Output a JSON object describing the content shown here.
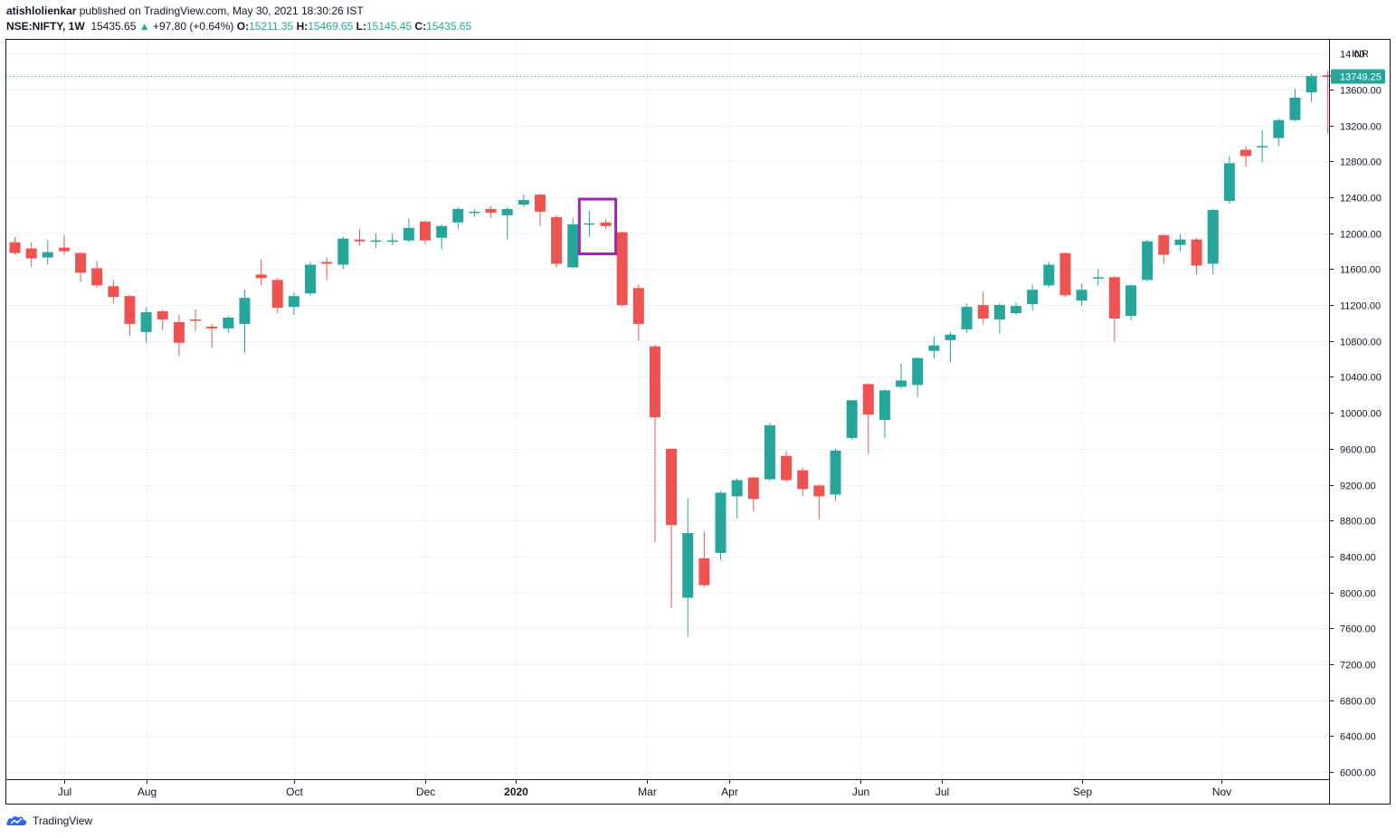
{
  "header": {
    "publisher": "atishlolienkar",
    "published_text": "published on TradingView.com, May 30, 2021 18:30:26 IST",
    "symbol": "NSE:NIFTY, 1W",
    "last_price": "15435.65",
    "change": "+97.80 (+0.64%)",
    "o_label": "O:",
    "o_value": "15211.35",
    "h_label": "H:",
    "h_value": "15469.65",
    "l_label": "L:",
    "l_value": "15145.45",
    "c_label": "C:",
    "c_value": "15435.65"
  },
  "footer": {
    "brand": "TradingView"
  },
  "colors": {
    "up": "#26a69a",
    "down": "#ef5350",
    "highlight": "#9c27b0",
    "grid": "#f0f3fa"
  },
  "chart_data": {
    "type": "candlestick",
    "currency": "INR",
    "last_price_label": "13749.25",
    "ylim": [
      5950,
      14300
    ],
    "y_ticks": [
      6000,
      6400,
      6800,
      7200,
      7600,
      8000,
      8400,
      8800,
      9200,
      9600,
      10000,
      10400,
      10800,
      11200,
      11600,
      12000,
      12400,
      12800,
      13200,
      13600
    ],
    "y_tick_top_label": "14 00",
    "x_ticks": [
      {
        "label": "Jul",
        "index": 3,
        "bold": false
      },
      {
        "label": "Aug",
        "index": 8,
        "bold": false
      },
      {
        "label": "Oct",
        "index": 17,
        "bold": false
      },
      {
        "label": "Dec",
        "index": 25,
        "bold": false
      },
      {
        "label": "2020",
        "index": 30.5,
        "bold": true
      },
      {
        "label": "Mar",
        "index": 38.5,
        "bold": false
      },
      {
        "label": "Apr",
        "index": 43.5,
        "bold": false
      },
      {
        "label": "Jun",
        "index": 51.5,
        "bold": false
      },
      {
        "label": "Jul",
        "index": 56.5,
        "bold": false
      },
      {
        "label": "Sep",
        "index": 65,
        "bold": false
      },
      {
        "label": "Nov",
        "index": 73.5,
        "bold": false
      }
    ],
    "highlight_box": {
      "from_index": 34.5,
      "to_index": 36.5,
      "low": 11770,
      "high": 12380
    },
    "candles": [
      [
        11900,
        11780,
        11960,
        11760
      ],
      [
        11830,
        11720,
        11900,
        11630
      ],
      [
        11730,
        11790,
        11920,
        11650
      ],
      [
        11840,
        11800,
        11980,
        11760
      ],
      [
        11780,
        11560,
        11790,
        11460
      ],
      [
        11610,
        11420,
        11690,
        11390
      ],
      [
        11410,
        11290,
        11480,
        11220
      ],
      [
        11300,
        10990,
        11310,
        10860
      ],
      [
        10900,
        11120,
        11180,
        10780
      ],
      [
        11130,
        11040,
        11150,
        10920
      ],
      [
        11010,
        10780,
        11090,
        10630
      ],
      [
        11040,
        11030,
        11150,
        10910
      ],
      [
        10960,
        10940,
        10990,
        10720
      ],
      [
        10940,
        11060,
        11080,
        10890
      ],
      [
        10990,
        11280,
        11370,
        10670
      ],
      [
        11540,
        11500,
        11710,
        11420
      ],
      [
        11480,
        11170,
        11500,
        11110
      ],
      [
        11180,
        11300,
        11340,
        11090
      ],
      [
        11330,
        11650,
        11680,
        11300
      ],
      [
        11680,
        11660,
        11730,
        11480
      ],
      [
        11650,
        11940,
        11960,
        11600
      ],
      [
        11930,
        11910,
        12040,
        11860
      ],
      [
        11910,
        11920,
        12000,
        11830
      ],
      [
        11910,
        11920,
        12000,
        11870
      ],
      [
        11920,
        12060,
        12160,
        11900
      ],
      [
        12130,
        11920,
        12140,
        11880
      ],
      [
        11950,
        12080,
        12100,
        11820
      ],
      [
        12120,
        12270,
        12290,
        12050
      ],
      [
        12230,
        12240,
        12270,
        12180
      ],
      [
        12270,
        12230,
        12300,
        12170
      ],
      [
        12200,
        12270,
        12290,
        11930
      ],
      [
        12320,
        12370,
        12430,
        12290
      ],
      [
        12430,
        12240,
        12440,
        12080
      ],
      [
        12180,
        11660,
        12200,
        11620
      ],
      [
        11620,
        12100,
        12160,
        11610
      ],
      [
        12100,
        12110,
        12250,
        11960
      ],
      [
        12120,
        12080,
        12160,
        12050
      ],
      [
        12010,
        11200,
        12020,
        11180
      ],
      [
        11390,
        10990,
        11430,
        10800
      ],
      [
        10740,
        9950,
        10760,
        8560
      ],
      [
        9600,
        8750,
        9600,
        7830
      ],
      [
        7940,
        8660,
        9050,
        7510
      ],
      [
        8380,
        8080,
        8680,
        8060
      ],
      [
        8440,
        9110,
        9130,
        8360
      ],
      [
        9070,
        9250,
        9270,
        8820
      ],
      [
        9280,
        9040,
        9280,
        8900
      ],
      [
        9260,
        9860,
        9890,
        9240
      ],
      [
        9520,
        9250,
        9570,
        9230
      ],
      [
        9360,
        9150,
        9390,
        9070
      ],
      [
        9190,
        9070,
        9200,
        8810
      ],
      [
        9090,
        9580,
        9600,
        9020
      ],
      [
        9720,
        10140,
        10140,
        9700
      ],
      [
        10320,
        9980,
        10330,
        9540
      ],
      [
        9920,
        10250,
        10260,
        9720
      ],
      [
        10290,
        10360,
        10550,
        10270
      ],
      [
        10310,
        10610,
        10620,
        10180
      ],
      [
        10690,
        10750,
        10850,
        10600
      ],
      [
        10810,
        10870,
        10900,
        10560
      ],
      [
        10930,
        11180,
        11220,
        10890
      ],
      [
        11200,
        11050,
        11350,
        10990
      ],
      [
        11040,
        11200,
        11220,
        10880
      ],
      [
        11110,
        11190,
        11230,
        11090
      ],
      [
        11210,
        11370,
        11430,
        11140
      ],
      [
        11420,
        11650,
        11680,
        11400
      ],
      [
        11780,
        11310,
        11780,
        11290
      ],
      [
        11250,
        11370,
        11440,
        11190
      ],
      [
        11500,
        11510,
        11600,
        11420
      ],
      [
        11510,
        11050,
        11520,
        10790
      ],
      [
        11080,
        11420,
        11430,
        11030
      ],
      [
        11480,
        11910,
        11930,
        11460
      ],
      [
        11980,
        11760,
        11990,
        11660
      ],
      [
        11870,
        11930,
        11990,
        11800
      ],
      [
        11930,
        11640,
        11950,
        11540
      ],
      [
        11660,
        12260,
        12270,
        11540
      ],
      [
        12360,
        12780,
        12860,
        12330
      ],
      [
        12930,
        12860,
        12970,
        12740
      ],
      [
        12960,
        12970,
        13150,
        12790
      ],
      [
        13060,
        13260,
        13280,
        12970
      ],
      [
        13260,
        13510,
        13610,
        13250
      ],
      [
        13570,
        13750,
        13780,
        13460
      ],
      [
        13760,
        13740,
        13810,
        13110
      ]
    ]
  }
}
